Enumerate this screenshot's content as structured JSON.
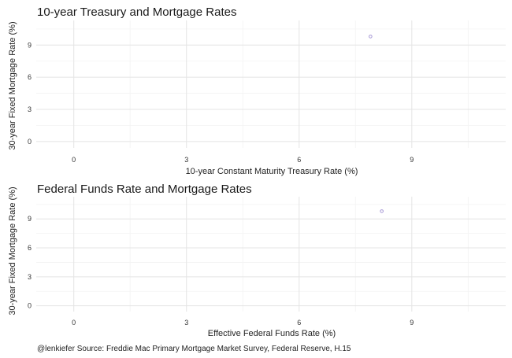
{
  "caption": "@lenkiefer Source: Freddie Mac Primary Mortgage Market Survey, Federal Reserve, H.15",
  "chart_data": [
    {
      "type": "scatter",
      "title": "10-year Treasury and Mortgage Rates",
      "xlabel": "10-year Constant Maturity Treasury Rate (%)",
      "ylabel": "30-year Fixed Mortgage Rate (%)",
      "xlim": [
        -1.0,
        11.5
      ],
      "ylim": [
        -0.6,
        11.3
      ],
      "xticks": [
        0,
        3,
        6,
        9
      ],
      "yticks": [
        0,
        3,
        6,
        9
      ],
      "grid": true,
      "point_color": "#a89ad6",
      "points": [
        {
          "x": 7.9,
          "y": 9.8
        }
      ]
    },
    {
      "type": "scatter",
      "title": "Federal Funds Rate and Mortgage Rates",
      "xlabel": "Effective Federal Funds Rate (%)",
      "ylabel": "30-year Fixed Mortgage Rate (%)",
      "xlim": [
        -1.0,
        11.5
      ],
      "ylim": [
        -0.6,
        11.3
      ],
      "xticks": [
        0,
        3,
        6,
        9
      ],
      "yticks": [
        0,
        3,
        6,
        9
      ],
      "grid": true,
      "point_color": "#a89ad6",
      "points": [
        {
          "x": 8.2,
          "y": 9.8
        }
      ]
    }
  ]
}
